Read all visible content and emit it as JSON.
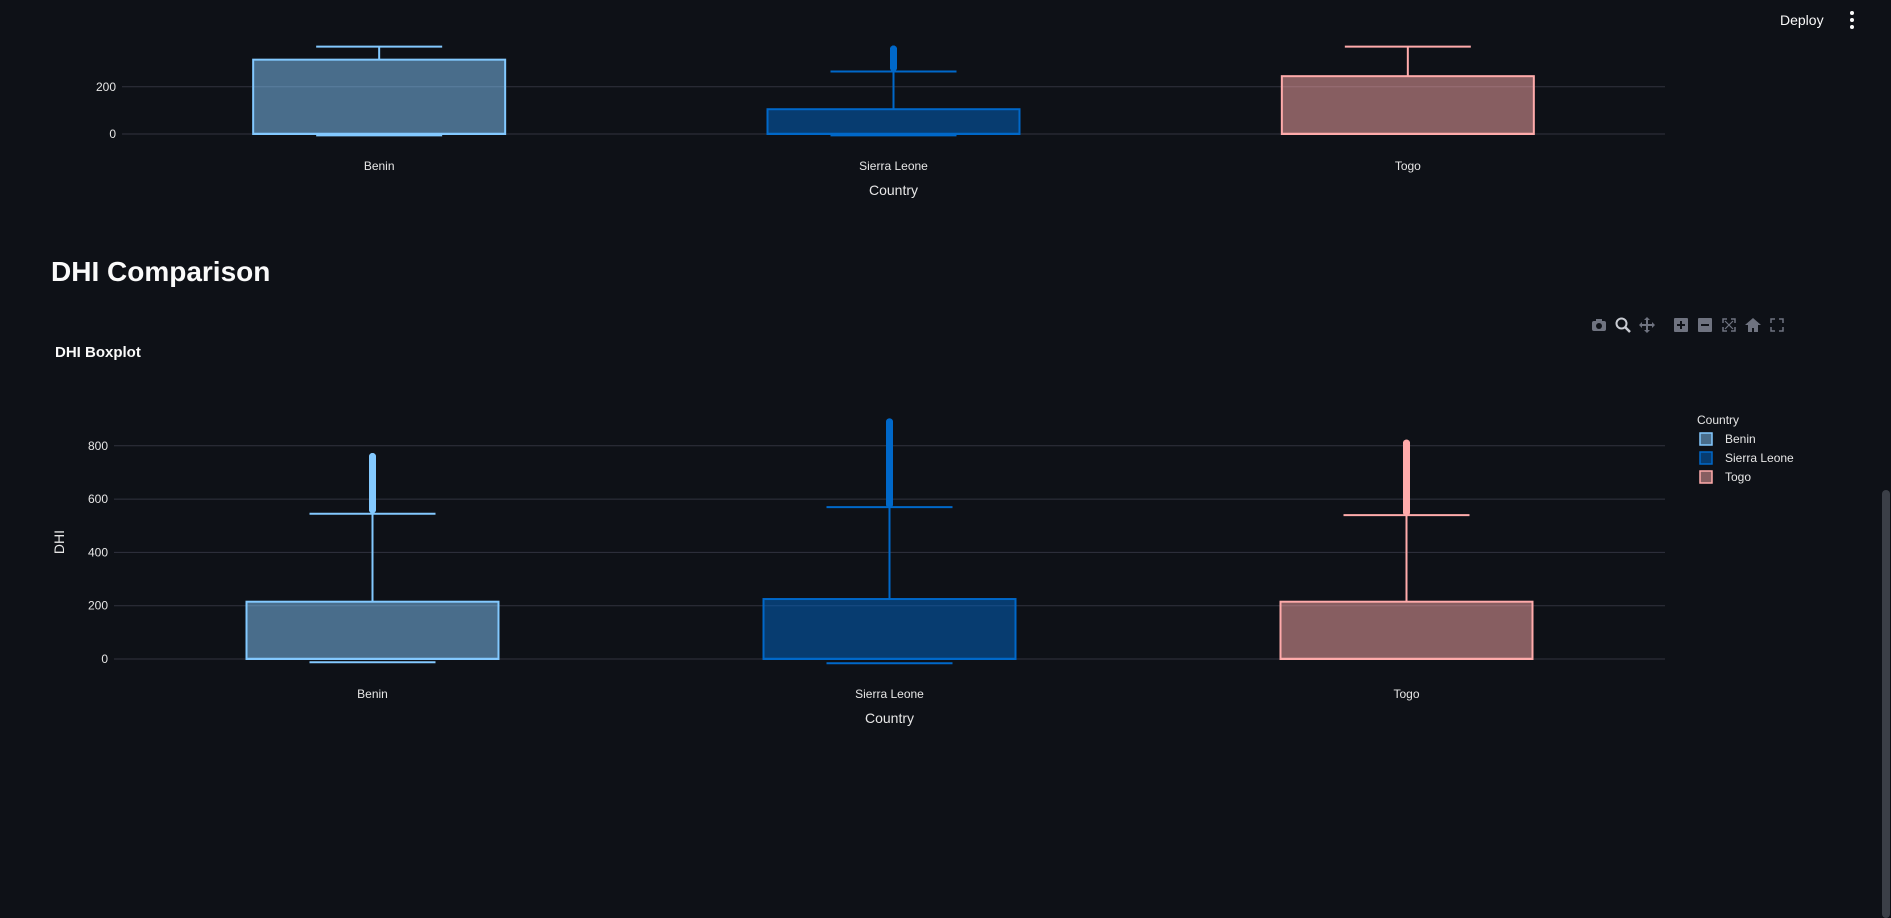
{
  "topbar": {
    "deploy_label": "Deploy",
    "menu_icon": "vertical-dots-icon"
  },
  "sections": [
    {
      "heading": "DHI Comparison"
    }
  ],
  "modebar": {
    "icons": [
      "camera-icon",
      "zoom-icon",
      "pan-icon",
      "zoom-in-icon",
      "zoom-out-icon",
      "autoscale-icon",
      "reset-axes-icon",
      "fullscreen-icon"
    ],
    "active": "zoom-icon"
  },
  "colors": {
    "background": "#0e1117",
    "grid": "#31333f",
    "Benin": "#83c9ff",
    "Sierra Leone": "#0068c9",
    "Togo": "#ffabab"
  },
  "chart_data": [
    {
      "type": "box",
      "title": "",
      "xlabel": "Country",
      "ylabel": "",
      "categories": [
        "Benin",
        "Sierra Leone",
        "Togo"
      ],
      "y_ticks": [
        0,
        200
      ],
      "legend_visible": false,
      "series": [
        {
          "name": "Benin",
          "q1": 0,
          "median": 1,
          "q3": 315,
          "lower_fence": -6,
          "upper_fence": 370,
          "outliers": []
        },
        {
          "name": "Sierra Leone",
          "q1": 0,
          "median": 1,
          "q3": 105,
          "lower_fence": -6,
          "upper_fence": 265,
          "outliers": [
            280,
            300,
            320,
            340,
            360
          ]
        },
        {
          "name": "Togo",
          "q1": 0,
          "median": 1,
          "q3": 245,
          "lower_fence": 0,
          "upper_fence": 370,
          "outliers": []
        }
      ]
    },
    {
      "type": "box",
      "title": "DHI Boxplot",
      "xlabel": "Country",
      "ylabel": "DHI",
      "categories": [
        "Benin",
        "Sierra Leone",
        "Togo"
      ],
      "y_ticks": [
        0,
        200,
        400,
        600,
        800
      ],
      "ylim": [
        -30,
        900
      ],
      "legend_title": "Country",
      "legend_position": "top-right",
      "series": [
        {
          "name": "Benin",
          "q1": 0,
          "median": 1,
          "q3": 215,
          "lower_fence": -12,
          "upper_fence": 545,
          "outliers": [
            560,
            600,
            640,
            680,
            720,
            760
          ]
        },
        {
          "name": "Sierra Leone",
          "q1": 0,
          "median": 1,
          "q3": 225,
          "lower_fence": -16,
          "upper_fence": 570,
          "outliers": [
            580,
            620,
            660,
            700,
            740,
            780,
            820,
            850,
            890
          ]
        },
        {
          "name": "Togo",
          "q1": 0,
          "median": 1,
          "q3": 215,
          "lower_fence": 0,
          "upper_fence": 540,
          "outliers": [
            550,
            600,
            650,
            700,
            750,
            790,
            810
          ]
        }
      ]
    }
  ]
}
